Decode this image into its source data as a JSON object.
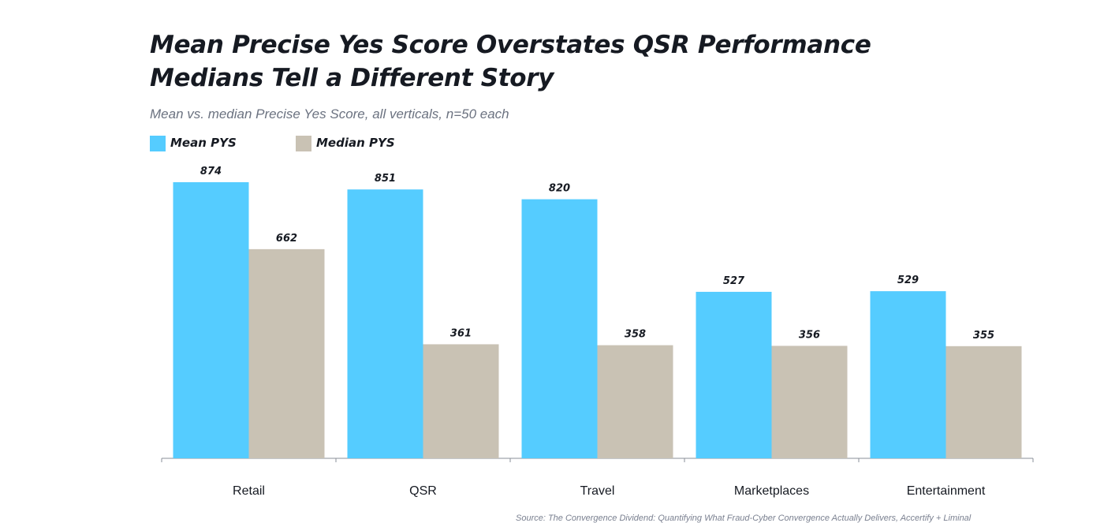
{
  "title_line1": "Mean Precise Yes Score Overstates QSR Performance",
  "title_line2": "Medians Tell a Different Story",
  "subtitle": "Mean vs. median Precise Yes Score, all verticals, n=50 each",
  "source": "Source: The Convergence Dividend: Quantifying What Fraud-Cyber Convergence Actually Delivers, Accertify + Liminal",
  "colors": {
    "mean": "#55ccff",
    "median": "#c9c2b4",
    "axis": "#8a8f98",
    "text": "#161a22"
  },
  "chart_data": {
    "type": "bar",
    "title": "Mean Precise Yes Score Overstates QSR Performance Medians Tell a Different Story",
    "subtitle": "Mean vs. median Precise Yes Score, all verticals, n=50 each",
    "categories": [
      "Retail",
      "QSR",
      "Travel",
      "Marketplaces",
      "Entertainment"
    ],
    "series": [
      {
        "name": "Mean PYS",
        "color": "#55ccff",
        "values": [
          874,
          851,
          820,
          527,
          529
        ]
      },
      {
        "name": "Median PYS",
        "color": "#c9c2b4",
        "values": [
          662,
          361,
          358,
          356,
          355
        ]
      }
    ],
    "ylim": [
      0,
      1000
    ],
    "grid": false,
    "legend": "top-left",
    "data_labels": true
  }
}
